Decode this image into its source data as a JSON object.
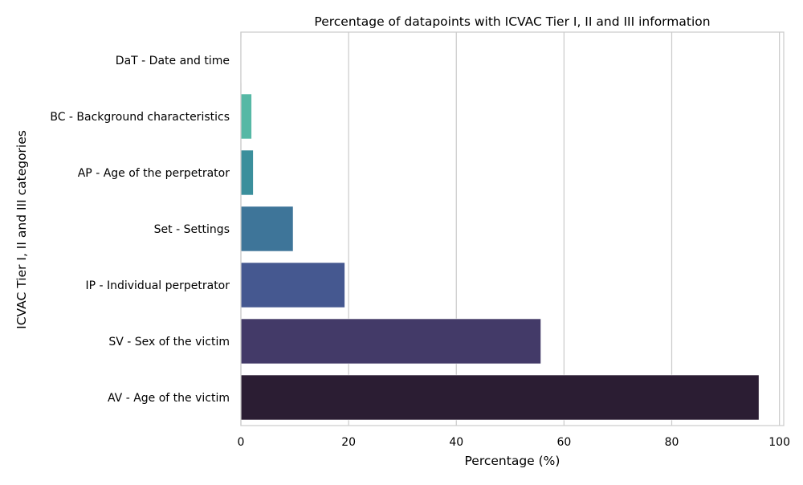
{
  "chart_data": {
    "type": "bar",
    "orientation": "horizontal",
    "title": "Percentage of datapoints with ICVAC Tier I, II and III information",
    "xlabel": "Percentage (%)",
    "ylabel": "ICVAC Tier I, II and III categories",
    "xlim": [
      0,
      100.8
    ],
    "xticks": [
      "0",
      "20",
      "40",
      "60",
      "80",
      "100"
    ],
    "xtick_values": [
      0,
      20,
      40,
      60,
      80,
      100
    ],
    "grid": "vertical",
    "categories": [
      "DaT - Date and time",
      "BC - Background characteristics",
      "AP - Age of the perpetrator",
      "Set - Settings",
      "IP - Individual perpetrator",
      "SV - Sex of the victim",
      "AV - Age of the victim"
    ],
    "values": [
      0.1,
      2.0,
      2.3,
      9.7,
      19.3,
      55.7,
      96.2
    ],
    "colors": [
      "#8fd9bf",
      "#56b8a5",
      "#3b8f9c",
      "#3e7599",
      "#455890",
      "#433a68",
      "#2b1d33"
    ]
  }
}
